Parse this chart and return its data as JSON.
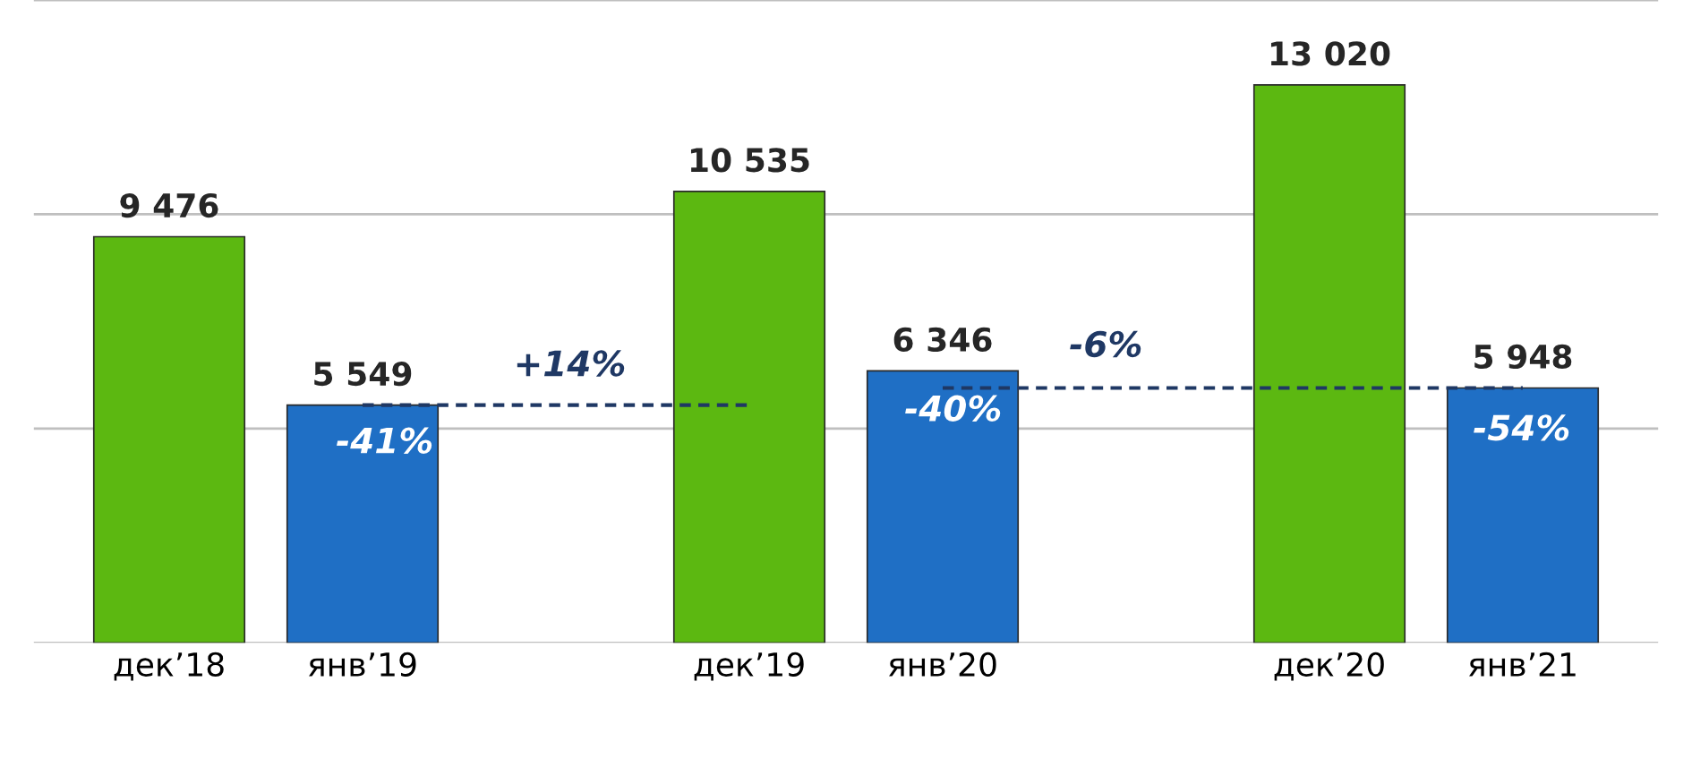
{
  "chart_data": {
    "type": "bar",
    "categories": [
      "дек’18",
      "янв’19",
      null,
      "дек’19",
      "янв’20",
      null,
      "дек’20",
      "янв’21"
    ],
    "series": [
      {
        "colors": [
          "#5cb811",
          "#1f6fc5",
          null,
          "#5cb811",
          "#1f6fc5",
          null,
          "#5cb811",
          "#1f6fc5"
        ],
        "values": [
          9476,
          5549,
          null,
          10535,
          6346,
          null,
          13020,
          5948
        ],
        "value_labels": [
          "9 476",
          "5 549",
          null,
          "10 535",
          "6 346",
          null,
          "13 020",
          "5 948"
        ]
      },
      {
        "type": "line",
        "color": "#1f3864",
        "line_style": "dashed",
        "values": [
          null,
          5549,
          5549,
          5549,
          null,
          null,
          null,
          null
        ]
      },
      {
        "type": "line",
        "color": "#1f3864",
        "line_style": "dashed",
        "values": [
          null,
          null,
          null,
          null,
          5948,
          5948,
          5948,
          5948
        ]
      }
    ],
    "annotations": [
      "-41%",
      "-40%",
      "-54%",
      "+14%",
      "-6%"
    ],
    "ylim": [
      0,
      15000
    ],
    "yticks": [
      {
        "value": 0,
        "label": null
      },
      {
        "value": 5000,
        "label": null
      },
      {
        "value": 10000,
        "label": null
      },
      {
        "value": 15000,
        "label": null
      }
    ],
    "grid": "y",
    "tick_labels": "x"
  }
}
